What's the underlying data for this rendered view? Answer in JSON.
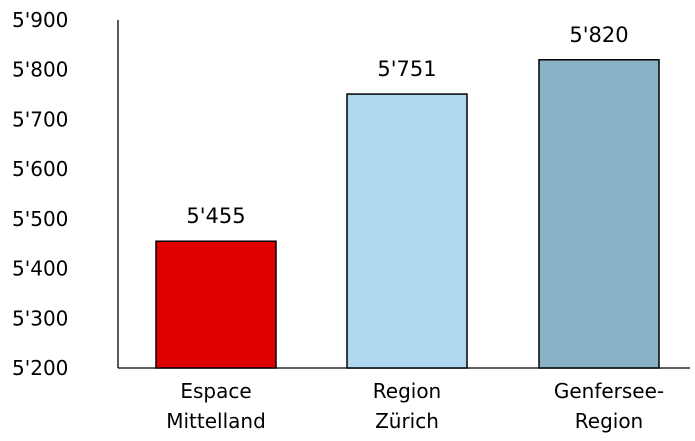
{
  "chart_data": {
    "type": "bar",
    "categories": [
      [
        "Espace",
        "Mittelland"
      ],
      [
        "Region",
        "Zürich"
      ],
      [
        "Genfersee-",
        "Region"
      ]
    ],
    "values": [
      5455,
      5751,
      5820
    ],
    "data_labels": [
      "5'455",
      "5'751",
      "5'820"
    ],
    "bar_colors": [
      "#e00000",
      "#add8f0",
      "#8ab2c7"
    ],
    "ylim": [
      5200,
      5900
    ],
    "yticks": [
      5200,
      5300,
      5400,
      5500,
      5600,
      5700,
      5800,
      5900
    ],
    "ytick_labels": [
      "5'200",
      "5'300",
      "5'400",
      "5'500",
      "5'600",
      "5'700",
      "5'800",
      "5'900"
    ],
    "grid": false,
    "legend": "none",
    "title": "",
    "xlabel": "",
    "ylabel": ""
  }
}
